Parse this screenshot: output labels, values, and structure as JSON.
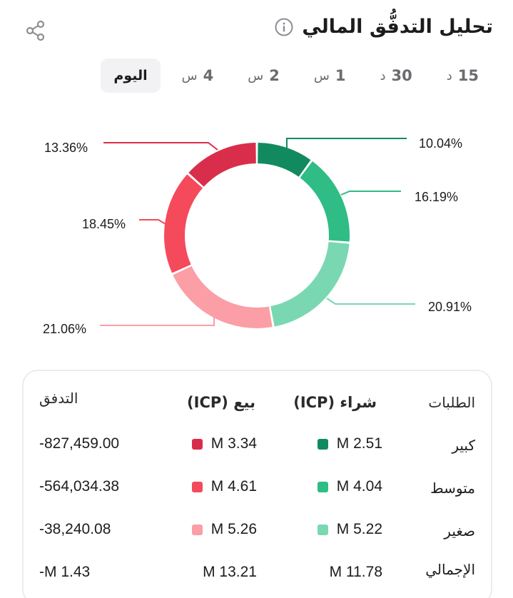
{
  "header": {
    "title": "تحليل التدفُّق المالي",
    "share_icon": "share-icon",
    "info_icon": "info-icon"
  },
  "tabs": [
    {
      "num": "15",
      "unit": "د"
    },
    {
      "num": "30",
      "unit": "د"
    },
    {
      "num": "1",
      "unit": "س"
    },
    {
      "num": "2",
      "unit": "س"
    },
    {
      "num": "4",
      "unit": "س"
    },
    {
      "num": "",
      "unit": "اليوم",
      "active": true
    }
  ],
  "chart_data": {
    "type": "pie",
    "donut": true,
    "slices": [
      {
        "label": "buy-large",
        "value": 10.04,
        "display": "10.04%",
        "color": "#128a60"
      },
      {
        "label": "buy-medium",
        "value": 16.19,
        "display": "16.19%",
        "color": "#2fbc85"
      },
      {
        "label": "buy-small",
        "value": 20.91,
        "display": "20.91%",
        "color": "#79d8b1"
      },
      {
        "label": "sell-small",
        "value": 21.06,
        "display": "21.06%",
        "color": "#fb9ea6"
      },
      {
        "label": "sell-medium",
        "value": 18.45,
        "display": "18.45%",
        "color": "#f44a5c"
      },
      {
        "label": "sell-large",
        "value": 13.36,
        "display": "13.36%",
        "color": "#d92e4b"
      }
    ]
  },
  "table": {
    "headers": {
      "orders": "الطلبات",
      "buy": "شراء (ICP)",
      "sell": "بيع (ICP)",
      "flow": "التدفق"
    },
    "rows": [
      {
        "label": "كبير",
        "buy": "M 2.51",
        "sell": "M 3.34",
        "flow": "-827,459.00",
        "buy_color": "#128a60",
        "sell_color": "#d92e4b"
      },
      {
        "label": "متوسط",
        "buy": "M 4.04",
        "sell": "M 4.61",
        "flow": "-564,034.38",
        "buy_color": "#2fbc85",
        "sell_color": "#f44a5c"
      },
      {
        "label": "صغير",
        "buy": "M 5.22",
        "sell": "M 5.26",
        "flow": "-38,240.08",
        "buy_color": "#79d8b1",
        "sell_color": "#fb9ea6"
      }
    ],
    "total": {
      "label": "الإجمالي",
      "buy": "M 11.78",
      "sell": "M 13.21",
      "flow": "-M 1.43"
    }
  }
}
